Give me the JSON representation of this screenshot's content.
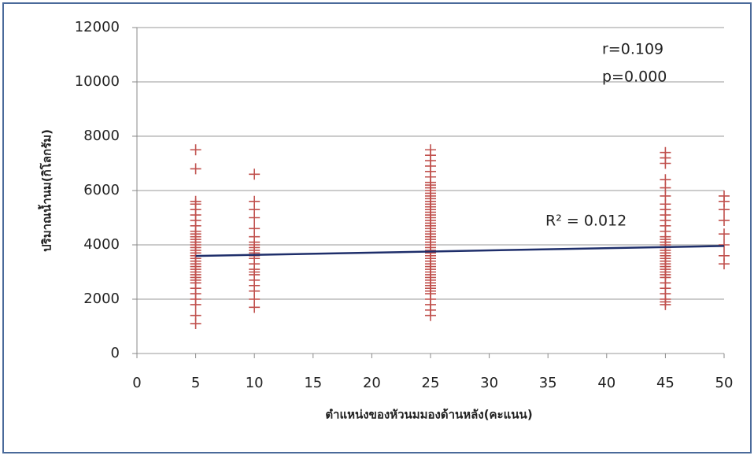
{
  "chart_data": {
    "type": "scatter",
    "y_label": "ปริมาณน้ำนม(กิโลกรัม)",
    "x_label": "ตำแหน่งของหัวนมมองด้านหลัง(คะแนน)",
    "annotations": [
      "r=0.109",
      "p=0.000",
      "R² = 0.012"
    ],
    "xlim": [
      0,
      50
    ],
    "xticks": [
      0,
      5,
      10,
      15,
      20,
      25,
      30,
      35,
      40,
      45,
      50
    ],
    "ylim": [
      0,
      12000
    ],
    "yticks": [
      0,
      2000,
      4000,
      6000,
      8000,
      10000,
      12000
    ],
    "grid": true,
    "series": [
      {
        "color": "#c0504d",
        "x": [
          5,
          5,
          5,
          5,
          5,
          5,
          5,
          5,
          5,
          5,
          5,
          5,
          5,
          5,
          5,
          5,
          5,
          5,
          5,
          5,
          5,
          5,
          5,
          5,
          5,
          5,
          5,
          5,
          5,
          5,
          5,
          5,
          5,
          5,
          10,
          10,
          10,
          10,
          10,
          10,
          10,
          10,
          10,
          10,
          10,
          10,
          10,
          10,
          10,
          10,
          10,
          10,
          10,
          10,
          10,
          10,
          25,
          25,
          25,
          25,
          25,
          25,
          25,
          25,
          25,
          25,
          25,
          25,
          25,
          25,
          25,
          25,
          25,
          25,
          25,
          25,
          25,
          25,
          25,
          25,
          25,
          25,
          25,
          25,
          25,
          25,
          25,
          25,
          25,
          25,
          25,
          25,
          25,
          25,
          25,
          25,
          25,
          25,
          25,
          25,
          25,
          25,
          25,
          25,
          25,
          25,
          25,
          25,
          45,
          45,
          45,
          45,
          45,
          45,
          45,
          45,
          45,
          45,
          45,
          45,
          45,
          45,
          45,
          45,
          45,
          45,
          45,
          45,
          45,
          45,
          45,
          45,
          45,
          45,
          45,
          45,
          45,
          45,
          45,
          45,
          45,
          45,
          50,
          50,
          50,
          50,
          50,
          50,
          50,
          50
        ],
        "values": [
          1100,
          1400,
          1800,
          2000,
          2200,
          2400,
          2600,
          2700,
          2800,
          2900,
          3000,
          3100,
          3200,
          3300,
          3400,
          3500,
          3600,
          3700,
          3800,
          3900,
          4000,
          4100,
          4200,
          4300,
          4400,
          4500,
          4700,
          4900,
          5100,
          5300,
          5500,
          5600,
          6800,
          7500,
          1700,
          2000,
          2300,
          2500,
          2700,
          2900,
          3000,
          3100,
          3300,
          3500,
          3600,
          3700,
          3800,
          3900,
          4000,
          4100,
          4300,
          4600,
          5000,
          5300,
          5600,
          6600,
          1400,
          1600,
          1800,
          2000,
          2200,
          2300,
          2400,
          2500,
          2600,
          2700,
          2800,
          2900,
          3000,
          3100,
          3200,
          3300,
          3400,
          3500,
          3600,
          3700,
          3800,
          3900,
          4000,
          4100,
          4200,
          4300,
          4400,
          4500,
          4600,
          4700,
          4800,
          4900,
          5000,
          5100,
          5200,
          5300,
          5400,
          5500,
          5600,
          5700,
          5800,
          5900,
          6000,
          6100,
          6200,
          6300,
          6500,
          6700,
          6900,
          7100,
          7300,
          7500,
          1800,
          1900,
          2000,
          2200,
          2400,
          2600,
          2800,
          2900,
          3000,
          3100,
          3200,
          3300,
          3400,
          3500,
          3600,
          3700,
          3800,
          3900,
          4000,
          4100,
          4200,
          4300,
          4500,
          4700,
          4900,
          5100,
          5300,
          5500,
          5800,
          6100,
          6400,
          7000,
          7200,
          7400,
          3300,
          3600,
          4000,
          4400,
          4900,
          5300,
          5600,
          5800
        ]
      }
    ],
    "trendline": {
      "color": "#1f2f6b",
      "x": [
        5,
        50
      ],
      "values": [
        3590,
        3960
      ]
    }
  }
}
